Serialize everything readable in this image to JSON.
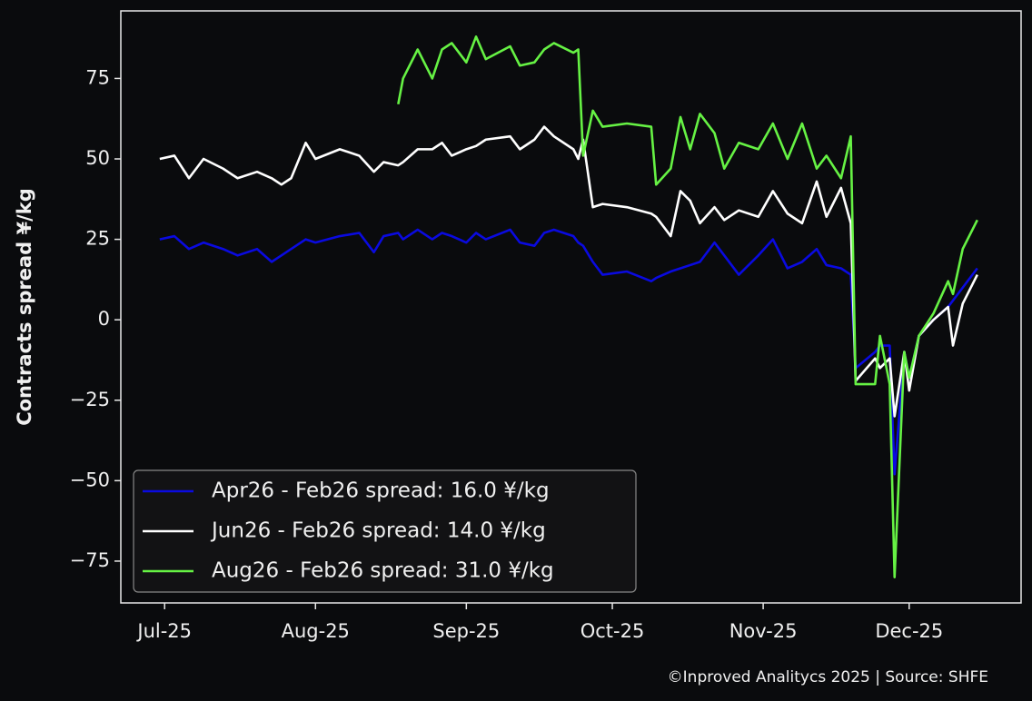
{
  "chart_data": {
    "type": "line",
    "ylabel": "Contracts spread ¥/kg",
    "footer": "©Inproved Analitycs 2025 | Source: SHFE",
    "x": [
      -1,
      2,
      5,
      8,
      12,
      15,
      19,
      22,
      24,
      26,
      29,
      31,
      36,
      40,
      43,
      45,
      48,
      49,
      52,
      55,
      57,
      59,
      62,
      64,
      66,
      71,
      73,
      76,
      78,
      80,
      84,
      85,
      86,
      88,
      90,
      95,
      100,
      101,
      104,
      106,
      108,
      110,
      113,
      115,
      118,
      122,
      125,
      128,
      131,
      134,
      136,
      139,
      141,
      142,
      146,
      147,
      149,
      150,
      152,
      153,
      155,
      158,
      161,
      162,
      164,
      167
    ],
    "xlim": [
      -9,
      176
    ],
    "xticks": [
      {
        "value": 0,
        "label": "Jul-25"
      },
      {
        "value": 31,
        "label": "Aug-25"
      },
      {
        "value": 62,
        "label": "Sep-25"
      },
      {
        "value": 92,
        "label": "Oct-25"
      },
      {
        "value": 123,
        "label": "Nov-25"
      },
      {
        "value": 153,
        "label": "Dec-25"
      }
    ],
    "ylim": [
      -88,
      96
    ],
    "yticks": [
      {
        "value": -75,
        "label": "−75"
      },
      {
        "value": -50,
        "label": "−50"
      },
      {
        "value": -25,
        "label": "−25"
      },
      0,
      25,
      50,
      75
    ],
    "legend": "lower left",
    "series": [
      {
        "name": "Apr26 - Feb26 spread: 16.0 ¥/kg",
        "color": "#0a0ae0",
        "values": [
          25,
          26,
          22,
          24,
          22,
          20,
          22,
          18,
          20,
          22,
          25,
          24,
          26,
          27,
          21,
          26,
          27,
          25,
          28,
          25,
          27,
          26,
          24,
          27,
          25,
          28,
          24,
          23,
          27,
          28,
          26,
          24,
          23,
          18,
          14,
          15,
          12,
          13,
          15,
          16,
          17,
          18,
          24,
          20,
          14,
          20,
          25,
          16,
          18,
          22,
          17,
          16,
          14,
          -15,
          -10,
          -8,
          -8,
          -48,
          -10,
          -18,
          -5,
          0,
          4,
          6,
          10,
          16
        ]
      },
      {
        "name": "Jun26 - Feb26 spread: 14.0 ¥/kg",
        "color": "#ffffff",
        "values": [
          50,
          51,
          44,
          50,
          47,
          44,
          46,
          44,
          42,
          44,
          55,
          50,
          53,
          51,
          46,
          49,
          48,
          49,
          53,
          53,
          55,
          51,
          53,
          54,
          56,
          57,
          53,
          56,
          60,
          57,
          53,
          50,
          56,
          35,
          36,
          35,
          33,
          32,
          26,
          40,
          37,
          30,
          35,
          31,
          34,
          32,
          40,
          33,
          30,
          43,
          32,
          41,
          30,
          -19,
          -12,
          -15,
          -12,
          -30,
          -10,
          -22,
          -5,
          0,
          4,
          -8,
          5,
          14
        ]
      },
      {
        "name": "Aug26 - Feb26 spread: 31.0 ¥/kg",
        "color": "#66f244",
        "values": [
          null,
          null,
          null,
          null,
          null,
          null,
          null,
          null,
          null,
          null,
          null,
          null,
          null,
          null,
          null,
          null,
          67,
          75,
          84,
          75,
          84,
          86,
          80,
          88,
          81,
          85,
          79,
          80,
          84,
          86,
          83,
          84,
          51,
          65,
          60,
          61,
          60,
          42,
          47,
          63,
          53,
          64,
          58,
          47,
          55,
          53,
          61,
          50,
          61,
          47,
          51,
          44,
          57,
          -20,
          -20,
          -5,
          -20,
          -80,
          -10,
          -18,
          -5,
          2,
          12,
          8,
          22,
          31
        ]
      }
    ]
  }
}
